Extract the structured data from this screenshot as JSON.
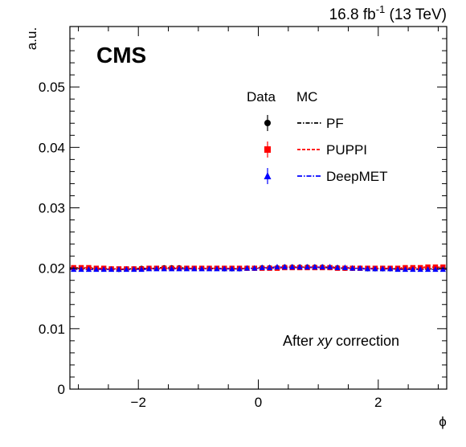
{
  "header": {
    "lumi_value": "16.8 fb",
    "lumi_exponent": "-1",
    "lumi_energy": " (13 TeV)",
    "experiment": "CMS"
  },
  "annotation": {
    "prefix": "After ",
    "italic": "xy",
    "suffix": " correction"
  },
  "legend": {
    "data_header": "Data",
    "mc_header": "MC",
    "entries": [
      {
        "label": "PF",
        "color": "#000000",
        "marker": "circle"
      },
      {
        "label": "PUPPI",
        "color": "#ff0000",
        "marker": "square"
      },
      {
        "label": "DeepMET",
        "color": "#0000ff",
        "marker": "triangle"
      }
    ]
  },
  "chart_data": {
    "type": "scatter",
    "xlabel": "ϕ",
    "ylabel": "a.u.",
    "xlim": [
      -3.14159,
      3.14159
    ],
    "ylim": [
      0,
      0.06
    ],
    "x_ticks": [
      -2,
      0,
      2
    ],
    "x_tick_labels": [
      "−2",
      "0",
      "2"
    ],
    "y_ticks": [
      0,
      0.01,
      0.02,
      0.03,
      0.04,
      0.05
    ],
    "y_tick_labels": [
      "0",
      "0.01",
      "0.02",
      "0.03",
      "0.04",
      "0.05"
    ],
    "bins": 50,
    "series": [
      {
        "name": "PF",
        "color": "#000000",
        "marker": "circle",
        "values": [
          0.02,
          0.02,
          0.02,
          0.0199,
          0.0199,
          0.0199,
          0.0198,
          0.0199,
          0.0199,
          0.02,
          0.02,
          0.02,
          0.0201,
          0.0201,
          0.0201,
          0.02,
          0.02,
          0.02,
          0.02,
          0.02,
          0.0199,
          0.0199,
          0.0199,
          0.02,
          0.02,
          0.0201,
          0.0201,
          0.0201,
          0.0202,
          0.0202,
          0.0202,
          0.0202,
          0.0202,
          0.0202,
          0.0201,
          0.0201,
          0.02,
          0.02,
          0.02,
          0.0199,
          0.0199,
          0.0199,
          0.0199,
          0.0199,
          0.0199,
          0.0199,
          0.0199,
          0.0199,
          0.0199,
          0.0199
        ]
      },
      {
        "name": "PUPPI",
        "color": "#ff0000",
        "marker": "square",
        "values": [
          0.0201,
          0.0201,
          0.0201,
          0.02,
          0.02,
          0.0199,
          0.0199,
          0.0199,
          0.0199,
          0.0199,
          0.02,
          0.02,
          0.02,
          0.02,
          0.02,
          0.02,
          0.02,
          0.02,
          0.02,
          0.02,
          0.02,
          0.02,
          0.02,
          0.02,
          0.02,
          0.02,
          0.02,
          0.02,
          0.0201,
          0.0201,
          0.0201,
          0.0201,
          0.0201,
          0.0201,
          0.0201,
          0.02,
          0.02,
          0.02,
          0.02,
          0.02,
          0.02,
          0.02,
          0.02,
          0.02,
          0.0201,
          0.0201,
          0.0201,
          0.0202,
          0.0202,
          0.0202
        ]
      },
      {
        "name": "DeepMET",
        "color": "#0000ff",
        "marker": "triangle",
        "values": [
          0.0198,
          0.0198,
          0.0198,
          0.0198,
          0.0198,
          0.0198,
          0.0198,
          0.0198,
          0.0198,
          0.0198,
          0.0199,
          0.0199,
          0.0199,
          0.0199,
          0.0199,
          0.0199,
          0.0199,
          0.0199,
          0.0199,
          0.0199,
          0.0199,
          0.0199,
          0.0199,
          0.02,
          0.02,
          0.0201,
          0.0201,
          0.0202,
          0.0202,
          0.0202,
          0.0202,
          0.0202,
          0.0202,
          0.0202,
          0.0202,
          0.0201,
          0.0201,
          0.02,
          0.02,
          0.0199,
          0.0199,
          0.0199,
          0.0199,
          0.0198,
          0.0198,
          0.0198,
          0.0198,
          0.0198,
          0.0198,
          0.0198
        ]
      }
    ]
  }
}
